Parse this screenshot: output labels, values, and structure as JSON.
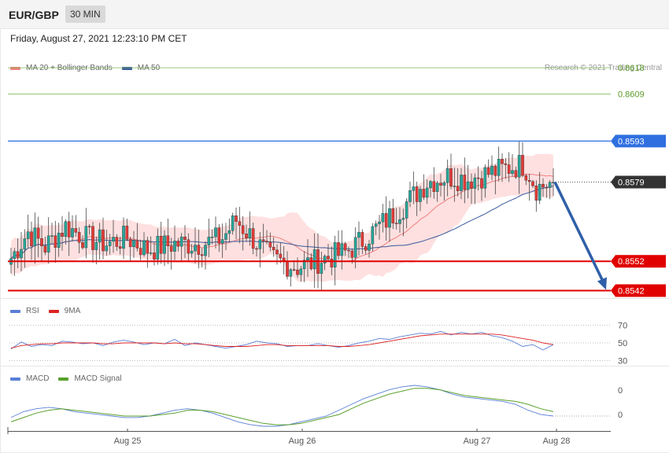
{
  "header": {
    "pair": "EUR/GBP",
    "timeframe": "30 MIN"
  },
  "datetime": "Friday, August 27, 2021 12:23:10 PM CET",
  "legend_main": [
    {
      "label": "MA 20 + Bollinger Bands",
      "color": "#f08080"
    },
    {
      "label": "MA 50",
      "color": "#3a5a9c"
    }
  ],
  "credit": "Research © 2021 Trading Central",
  "legend_rsi": [
    {
      "label": "RSI",
      "color": "#5b7fd6"
    },
    {
      "label": "9MA",
      "color": "#dd2222"
    }
  ],
  "legend_macd": [
    {
      "label": "MACD",
      "color": "#5b7fd6"
    },
    {
      "label": "MACD Signal",
      "color": "#5aa02c"
    }
  ],
  "colors": {
    "up": "#26a69a",
    "down": "#e53935",
    "bb_fill": "#fdd5d5",
    "resistance_green": "#7cba54",
    "pivot_blue": "#2f6fe0",
    "support_red": "#e00000",
    "arrow": "#2f5fa8",
    "price_tag": "#333333"
  },
  "chart_data": [
    {
      "type": "candlestick",
      "title": "EUR/GBP",
      "ylim": [
        0.854,
        0.8625
      ],
      "x_labels": [
        "Aug 25",
        "Aug 26",
        "Aug 27",
        "Aug 28"
      ],
      "levels": [
        {
          "label": "0.8618",
          "value": 0.8618,
          "kind": "resistance"
        },
        {
          "label": "0.8609",
          "value": 0.8609,
          "kind": "resistance"
        },
        {
          "label": "0.8593",
          "value": 0.8593,
          "kind": "pivot"
        },
        {
          "label": "0.8579",
          "value": 0.8579,
          "kind": "last"
        },
        {
          "label": "0.8552",
          "value": 0.8552,
          "kind": "support"
        },
        {
          "label": "0.8542",
          "value": 0.8542,
          "kind": "support"
        }
      ],
      "forecast_arrow": {
        "from": 0.8579,
        "to": 0.8542
      },
      "anchors": [
        [
          0,
          0.8553
        ],
        [
          5,
          0.8562
        ],
        [
          10,
          0.8557
        ],
        [
          16,
          0.8564
        ],
        [
          22,
          0.856
        ],
        [
          28,
          0.8558
        ],
        [
          34,
          0.856
        ],
        [
          40,
          0.8556
        ],
        [
          48,
          0.8558
        ],
        [
          56,
          0.8558
        ],
        [
          62,
          0.856
        ],
        [
          66,
          0.8566
        ],
        [
          70,
          0.8561
        ],
        [
          76,
          0.8553
        ],
        [
          84,
          0.855
        ],
        [
          92,
          0.8553
        ],
        [
          98,
          0.8555
        ],
        [
          104,
          0.856
        ],
        [
          110,
          0.8566
        ],
        [
          116,
          0.8572
        ],
        [
          122,
          0.8579
        ],
        [
          128,
          0.8581
        ],
        [
          134,
          0.858
        ],
        [
          140,
          0.8582
        ],
        [
          146,
          0.8584
        ],
        [
          150,
          0.8585
        ],
        [
          152,
          0.8582
        ],
        [
          154,
          0.8577
        ],
        [
          159,
          0.8579
        ]
      ],
      "n_candles": 160
    },
    {
      "type": "line",
      "title": "RSI",
      "ylim": [
        25,
        75
      ],
      "y_ticks": [
        70,
        50,
        30
      ],
      "series": [
        {
          "name": "RSI",
          "values": [
            43,
            51,
            46,
            48,
            47,
            52,
            51,
            49,
            50,
            47,
            51,
            53,
            51,
            48,
            50,
            49,
            54,
            47,
            50,
            48,
            46,
            44,
            46,
            48,
            52,
            50,
            49,
            46,
            47,
            47,
            49,
            47,
            45,
            47,
            50,
            52,
            55,
            54,
            57,
            59,
            61,
            60,
            63,
            59,
            62,
            60,
            62,
            58,
            56,
            52,
            46,
            48,
            42,
            48
          ]
        },
        {
          "name": "9MA",
          "values": [
            44,
            47,
            48,
            49,
            49,
            50,
            50,
            50,
            50,
            49,
            49,
            50,
            50,
            50,
            50,
            49,
            50,
            49,
            49,
            48,
            47,
            46,
            46,
            46,
            47,
            48,
            48,
            47,
            47,
            47,
            47,
            47,
            46,
            46,
            47,
            48,
            50,
            52,
            54,
            56,
            58,
            59,
            60,
            60,
            60,
            60,
            60,
            60,
            59,
            57,
            55,
            53,
            50,
            48
          ]
        }
      ]
    },
    {
      "type": "line",
      "title": "MACD",
      "y_ticks": [
        0,
        0
      ],
      "series": [
        {
          "name": "MACD",
          "values": [
            -0.0002,
            0.0002,
            0.0004,
            0.0005,
            0.0004,
            0.0002,
            0.0001,
            0.0,
            -0.0001,
            -0.0002,
            -0.0002,
            -0.0001,
            0.0001,
            0.0003,
            0.0004,
            0.0003,
            0.0001,
            -0.0002,
            -0.0005,
            -0.0007,
            -0.0008,
            -0.0008,
            -0.0007,
            -0.0005,
            -0.0003,
            -0.0001,
            0.0003,
            0.0007,
            0.0011,
            0.0014,
            0.0017,
            0.0019,
            0.002,
            0.0019,
            0.0017,
            0.0014,
            0.0012,
            0.0011,
            0.001,
            0.0009,
            0.0007,
            0.0003,
            0.0,
            -0.0001
          ]
        },
        {
          "name": "MACD Signal",
          "values": [
            -0.0005,
            -0.0002,
            0.0001,
            0.0003,
            0.0004,
            0.0003,
            0.0002,
            0.0001,
            0.0,
            -0.0001,
            -0.0001,
            -0.0001,
            0.0,
            0.0001,
            0.0003,
            0.0003,
            0.0002,
            0.0,
            -0.0002,
            -0.0004,
            -0.0006,
            -0.0007,
            -0.0007,
            -0.0006,
            -0.0004,
            -0.0002,
            0.0,
            0.0004,
            0.0008,
            0.0011,
            0.0014,
            0.0016,
            0.0018,
            0.0018,
            0.0017,
            0.0015,
            0.0013,
            0.0012,
            0.0011,
            0.001,
            0.0009,
            0.0007,
            0.0004,
            0.0002
          ]
        }
      ]
    }
  ]
}
